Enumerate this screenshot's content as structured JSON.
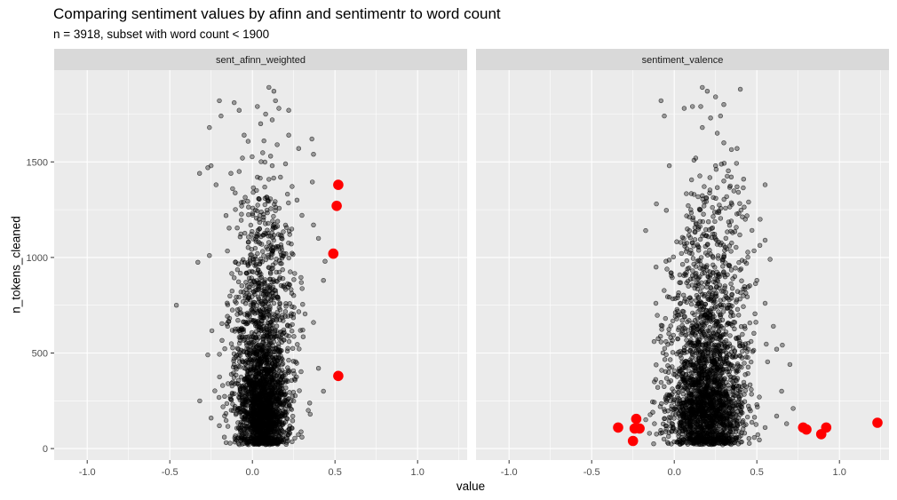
{
  "chart_data": {
    "type": "scatter",
    "title": "Comparing sentiment values by afinn and sentimentr to word count",
    "subtitle": "n = 3918, subset with word count < 1900",
    "xlabel": "value",
    "ylabel": "n_tokens_cleaned",
    "xlim": [
      -1.2,
      1.3
    ],
    "ylim": [
      -60,
      1980
    ],
    "x_ticks": [
      "-1.0",
      "-0.5",
      "0.0",
      "0.5",
      "1.0"
    ],
    "x_tick_values": [
      -1.0,
      -0.5,
      0.0,
      0.5,
      1.0
    ],
    "y_ticks": [
      "0",
      "500",
      "1000",
      "1500"
    ],
    "y_tick_values": [
      0,
      500,
      1000,
      1500
    ],
    "grid": true,
    "point_color": "#000000",
    "highlight_color": "#ff0000",
    "panels": [
      {
        "strip": "sent_afinn_weighted",
        "highlighted_points": [
          {
            "x": 0.52,
            "y": 1380
          },
          {
            "x": 0.51,
            "y": 1270
          },
          {
            "x": 0.49,
            "y": 1020
          },
          {
            "x": 0.52,
            "y": 380
          }
        ],
        "points": [
          {
            "x": -0.46,
            "y": 750
          },
          {
            "x": -0.33,
            "y": 975
          },
          {
            "x": -0.26,
            "y": 1010
          },
          {
            "x": -0.32,
            "y": 1440
          },
          {
            "x": -0.27,
            "y": 1470
          },
          {
            "x": -0.25,
            "y": 1480
          },
          {
            "x": -0.2,
            "y": 1820
          },
          {
            "x": -0.19,
            "y": 1740
          },
          {
            "x": -0.11,
            "y": 1810
          },
          {
            "x": -0.08,
            "y": 1770
          },
          {
            "x": -0.05,
            "y": 1640
          },
          {
            "x": -0.13,
            "y": 1440
          },
          {
            "x": -0.08,
            "y": 1450
          },
          {
            "x": -0.22,
            "y": 1380
          },
          {
            "x": -0.12,
            "y": 1360
          },
          {
            "x": -0.26,
            "y": 1680
          },
          {
            "x": -0.06,
            "y": 1520
          },
          {
            "x": -0.27,
            "y": 490
          },
          {
            "x": -0.25,
            "y": 160
          },
          {
            "x": 0.1,
            "y": 1890
          },
          {
            "x": 0.13,
            "y": 1870
          },
          {
            "x": 0.14,
            "y": 1820
          },
          {
            "x": 0.03,
            "y": 1790
          },
          {
            "x": 0.08,
            "y": 1750
          },
          {
            "x": 0.16,
            "y": 1780
          },
          {
            "x": 0.12,
            "y": 1720
          },
          {
            "x": 0.22,
            "y": 1770
          },
          {
            "x": 0.22,
            "y": 1640
          },
          {
            "x": 0.28,
            "y": 1570
          },
          {
            "x": 0.36,
            "y": 1620
          },
          {
            "x": 0.37,
            "y": 1540
          },
          {
            "x": 0.05,
            "y": 1700
          },
          {
            "x": 0.07,
            "y": 1610
          },
          {
            "x": 0.15,
            "y": 1590
          },
          {
            "x": 0.11,
            "y": 1530
          },
          {
            "x": 0.12,
            "y": 1480
          },
          {
            "x": 0.03,
            "y": 1420
          },
          {
            "x": 0.17,
            "y": 1420
          },
          {
            "x": 0.27,
            "y": 1300
          },
          {
            "x": 0.3,
            "y": 1220
          },
          {
            "x": 0.37,
            "y": 1170
          },
          {
            "x": 0.4,
            "y": 1100
          },
          {
            "x": 0.44,
            "y": 980
          },
          {
            "x": 0.43,
            "y": 880
          },
          {
            "x": 0.37,
            "y": 660
          },
          {
            "x": 0.4,
            "y": 420
          },
          {
            "x": 0.35,
            "y": 180
          },
          {
            "x": 0.43,
            "y": 300
          },
          {
            "x": -0.15,
            "y": 640
          },
          {
            "x": -0.18,
            "y": 330
          },
          {
            "x": -0.2,
            "y": 120
          },
          {
            "x": -0.17,
            "y": 60
          },
          {
            "x": 0.3,
            "y": 60
          }
        ],
        "cloud": [
          {
            "x": 0.06,
            "y": 160,
            "sx": 0.075,
            "sy": 120,
            "n": 1150
          },
          {
            "x": 0.06,
            "y": 420,
            "sx": 0.09,
            "sy": 170,
            "n": 750
          },
          {
            "x": 0.07,
            "y": 800,
            "sx": 0.1,
            "sy": 210,
            "n": 380
          },
          {
            "x": 0.09,
            "y": 1180,
            "sx": 0.09,
            "sy": 160,
            "n": 120
          }
        ]
      },
      {
        "strip": "sentiment_valence",
        "highlighted_points": [
          {
            "x": -0.34,
            "y": 110
          },
          {
            "x": -0.23,
            "y": 155
          },
          {
            "x": -0.24,
            "y": 105
          },
          {
            "x": -0.21,
            "y": 105
          },
          {
            "x": -0.25,
            "y": 40
          },
          {
            "x": 0.78,
            "y": 110
          },
          {
            "x": 0.8,
            "y": 100
          },
          {
            "x": 0.92,
            "y": 110
          },
          {
            "x": 0.89,
            "y": 75
          },
          {
            "x": 1.23,
            "y": 135
          }
        ],
        "points": [
          {
            "x": -0.08,
            "y": 1820
          },
          {
            "x": 0.06,
            "y": 1780
          },
          {
            "x": 0.11,
            "y": 1790
          },
          {
            "x": 0.16,
            "y": 1790
          },
          {
            "x": 0.17,
            "y": 1890
          },
          {
            "x": 0.2,
            "y": 1870
          },
          {
            "x": 0.25,
            "y": 1840
          },
          {
            "x": 0.3,
            "y": 1800
          },
          {
            "x": 0.4,
            "y": 1880
          },
          {
            "x": -0.06,
            "y": 1740
          },
          {
            "x": 0.22,
            "y": 1730
          },
          {
            "x": 0.28,
            "y": 1740
          },
          {
            "x": 0.26,
            "y": 1650
          },
          {
            "x": 0.17,
            "y": 1680
          },
          {
            "x": 0.3,
            "y": 1600
          },
          {
            "x": 0.38,
            "y": 1570
          },
          {
            "x": 0.13,
            "y": 1520
          },
          {
            "x": -0.03,
            "y": 1480
          },
          {
            "x": 0.25,
            "y": 1480
          },
          {
            "x": 0.3,
            "y": 1400
          },
          {
            "x": 0.38,
            "y": 1370
          },
          {
            "x": 0.42,
            "y": 1410
          },
          {
            "x": 0.55,
            "y": 1380
          },
          {
            "x": 0.45,
            "y": 1290
          },
          {
            "x": 0.43,
            "y": 1200
          },
          {
            "x": 0.52,
            "y": 1200
          },
          {
            "x": 0.55,
            "y": 1090
          },
          {
            "x": 0.58,
            "y": 990
          },
          {
            "x": -0.11,
            "y": 950
          },
          {
            "x": -0.05,
            "y": 980
          },
          {
            "x": 0.1,
            "y": 1250
          },
          {
            "x": 0.12,
            "y": 1330
          },
          {
            "x": 0.5,
            "y": 880
          },
          {
            "x": 0.55,
            "y": 760
          },
          {
            "x": 0.6,
            "y": 640
          },
          {
            "x": 0.62,
            "y": 520
          },
          {
            "x": 0.7,
            "y": 440
          },
          {
            "x": 0.65,
            "y": 300
          },
          {
            "x": 0.72,
            "y": 210
          },
          {
            "x": 0.68,
            "y": 130
          },
          {
            "x": 0.62,
            "y": 170
          },
          {
            "x": -0.05,
            "y": 560
          },
          {
            "x": -0.1,
            "y": 320
          },
          {
            "x": -0.13,
            "y": 190
          },
          {
            "x": -0.15,
            "y": 80
          },
          {
            "x": -0.12,
            "y": 130
          },
          {
            "x": 0.55,
            "y": 110
          },
          {
            "x": 0.5,
            "y": 230
          }
        ],
        "cloud": [
          {
            "x": 0.19,
            "y": 160,
            "sx": 0.11,
            "sy": 120,
            "n": 1150
          },
          {
            "x": 0.2,
            "y": 420,
            "sx": 0.12,
            "sy": 170,
            "n": 750
          },
          {
            "x": 0.21,
            "y": 800,
            "sx": 0.12,
            "sy": 210,
            "n": 380
          },
          {
            "x": 0.22,
            "y": 1180,
            "sx": 0.11,
            "sy": 160,
            "n": 120
          }
        ]
      }
    ]
  }
}
